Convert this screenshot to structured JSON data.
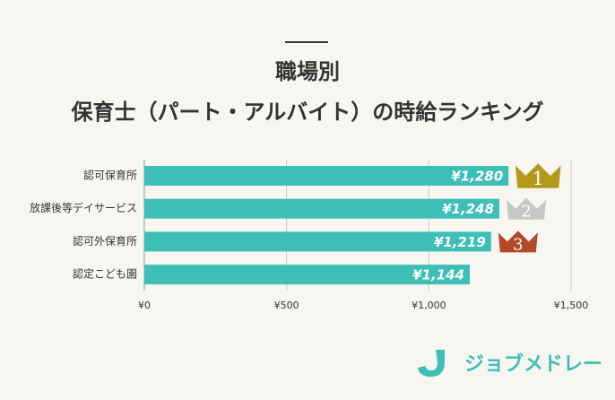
{
  "chart_data": {
    "type": "bar",
    "orientation": "horizontal",
    "title": "職場別",
    "subtitle": "保育士（パート・アルバイト）の時給ランキング",
    "categories": [
      "認可保育所",
      "放課後等デイサービス",
      "認可外保育所",
      "認定こども園"
    ],
    "values": [
      1280,
      1248,
      1219,
      1144
    ],
    "value_labels": [
      "¥1,280",
      "¥1,248",
      "¥1,219",
      "¥1,144"
    ],
    "color": "#3dbfb8",
    "rank_labels": [
      "1",
      "2",
      "3"
    ],
    "rank_colors": [
      "#b59a1a",
      "#c6c6c6",
      "#b4482b"
    ],
    "xlim": [
      0,
      1500
    ],
    "xticks": [
      {
        "value": 0,
        "label": "¥0"
      },
      {
        "value": 500,
        "label": "¥500"
      },
      {
        "value": 1000,
        "label": "¥1,000"
      },
      {
        "value": 1500,
        "label": "¥1,500"
      }
    ],
    "grid": true
  },
  "brand": "ジョブメドレー"
}
